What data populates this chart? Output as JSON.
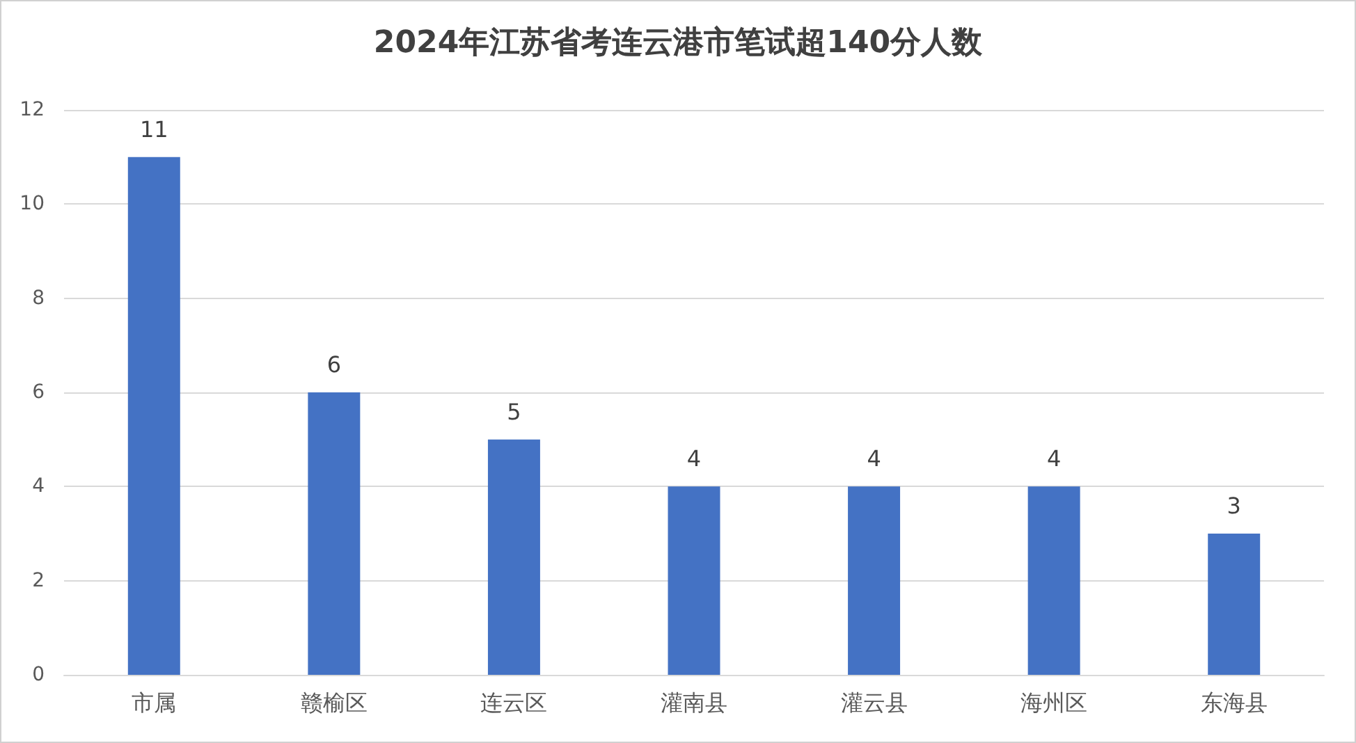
{
  "chart_data": {
    "type": "bar",
    "title": "2024年江苏省考连云港市笔试超140分人数",
    "categories": [
      "市属",
      "赣榆区",
      "连云区",
      "灌南县",
      "灌云县",
      "海州区",
      "东海县"
    ],
    "values": [
      11,
      6,
      5,
      4,
      4,
      4,
      3
    ],
    "color": "#4472c4",
    "ylim": [
      0,
      12
    ],
    "yticks": [
      0,
      2,
      4,
      6,
      8,
      10,
      12
    ],
    "grid": "y",
    "data_labels": true
  }
}
